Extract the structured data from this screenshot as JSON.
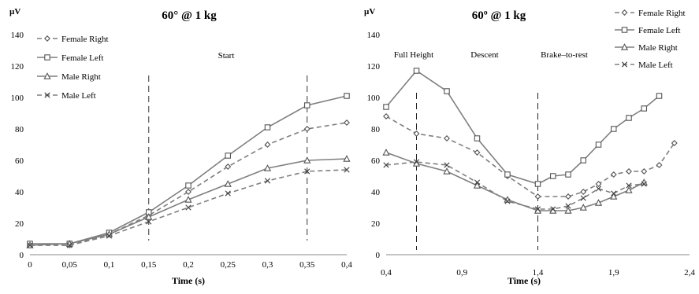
{
  "chart_data": [
    {
      "type": "line",
      "title": "60° @ 1 kg",
      "unit_label": "µV",
      "xlabel": "Time (s)",
      "ylabel": "",
      "categories": [
        "0",
        "0,05",
        "0,1",
        "0,15",
        "0,2",
        "0,25",
        "0,3",
        "0,35",
        "0,4"
      ],
      "y_ticks": [
        "0",
        "20",
        "40",
        "60",
        "80",
        "100",
        "120",
        "140"
      ],
      "ylim": [
        0,
        140
      ],
      "grid": false,
      "legend_position": "top-left",
      "phase_labels": [
        "Start"
      ],
      "series": [
        {
          "name": "Female Right",
          "marker": "diamond",
          "dashed": true,
          "values": [
            6,
            6,
            13,
            25,
            40,
            56,
            70,
            80,
            84
          ]
        },
        {
          "name": "Female Left",
          "marker": "square",
          "dashed": false,
          "values": [
            7,
            7,
            14,
            27,
            44,
            63,
            81,
            95,
            101
          ]
        },
        {
          "name": "Male Right",
          "marker": "triangle",
          "dashed": false,
          "values": [
            6,
            7,
            13,
            24,
            35,
            45,
            55,
            60,
            61
          ]
        },
        {
          "name": "Male Left",
          "marker": "x",
          "dashed": true,
          "values": [
            6,
            6,
            12,
            21,
            30,
            39,
            47,
            53,
            54
          ]
        }
      ]
    },
    {
      "type": "line",
      "title": "60º @ 1 kg",
      "unit_label": "µV",
      "xlabel": "Time (s)",
      "ylabel": "",
      "x_ticks": [
        "0,4",
        "0,9",
        "1,4",
        "1,9",
        "2,4"
      ],
      "xlim": [
        0.4,
        2.4
      ],
      "y_ticks": [
        "0",
        "20",
        "40",
        "60",
        "80",
        "100",
        "120",
        "140"
      ],
      "ylim": [
        0,
        140
      ],
      "grid": false,
      "legend_position": "top-right",
      "phase_labels": [
        "Full Height",
        "Descent",
        "Brake–to-rest"
      ],
      "series": [
        {
          "name": "Female Right",
          "marker": "diamond",
          "dashed": true,
          "x": [
            0.4,
            0.6,
            0.8,
            1.0,
            1.2,
            1.4,
            1.6,
            1.7,
            1.8,
            1.9,
            2.0,
            2.1,
            2.2,
            2.3
          ],
          "y": [
            88,
            77,
            74,
            65,
            50,
            37,
            37,
            40,
            45,
            51,
            53,
            53,
            57,
            71
          ]
        },
        {
          "name": "Female Left",
          "marker": "square",
          "dashed": false,
          "x": [
            0.4,
            0.6,
            0.8,
            1.0,
            1.2,
            1.4,
            1.5,
            1.6,
            1.7,
            1.8,
            1.9,
            2.0,
            2.1,
            2.2
          ],
          "y": [
            94,
            117,
            104,
            74,
            51,
            45,
            50,
            51,
            60,
            70,
            80,
            87,
            93,
            101
          ]
        },
        {
          "name": "Male Right",
          "marker": "triangle",
          "dashed": false,
          "x": [
            0.4,
            0.6,
            0.8,
            1.0,
            1.2,
            1.4,
            1.5,
            1.6,
            1.7,
            1.8,
            1.9,
            2.0,
            2.1
          ],
          "y": [
            65,
            58,
            53,
            44,
            35,
            28,
            28,
            28,
            30,
            33,
            37,
            41,
            46
          ]
        },
        {
          "name": "Male Left",
          "marker": "x",
          "dashed": true,
          "x": [
            0.4,
            0.6,
            0.8,
            1.0,
            1.2,
            1.4,
            1.5,
            1.6,
            1.7,
            1.8,
            1.9,
            2.0,
            2.1
          ],
          "y": [
            57,
            59,
            57,
            46,
            34,
            29,
            29,
            31,
            36,
            42,
            39,
            44,
            45
          ]
        }
      ]
    }
  ]
}
